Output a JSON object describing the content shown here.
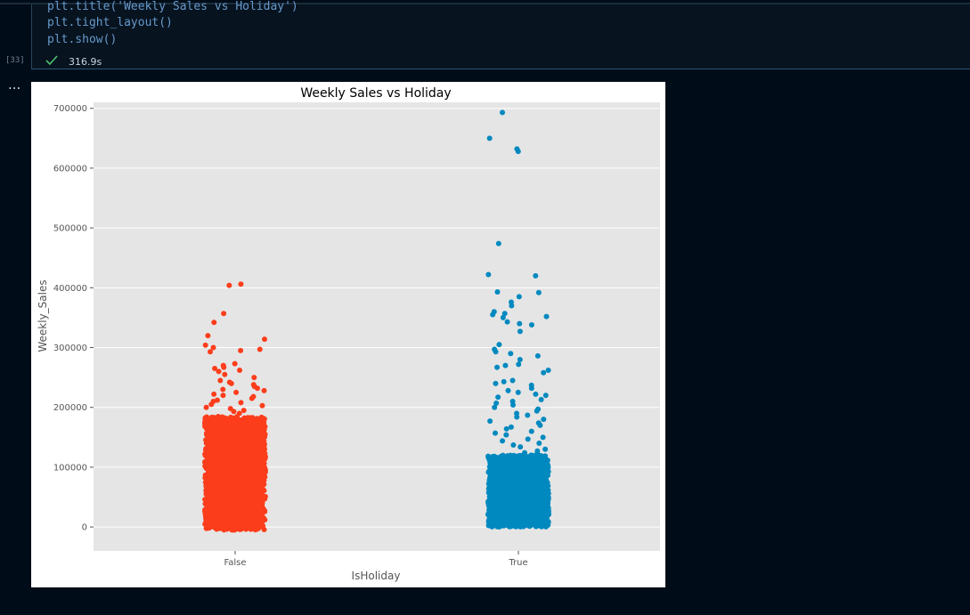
{
  "code": {
    "line1": "plt.title('Weekly Sales vs Holiday')",
    "line2": "plt.tight_layout()",
    "line3": "plt.show()",
    "exec_count": "[33]",
    "duration": "316.9s",
    "output_menu": "..."
  },
  "colors": {
    "false_series": "#fc3d1b",
    "true_series": "#0089bf",
    "plot_bg": "#e5e5e5",
    "grid": "#ffffff"
  },
  "chart_data": {
    "type": "scatter",
    "subtype": "strip plot (jittered)",
    "title": "Weekly Sales vs Holiday",
    "xlabel": "IsHoliday",
    "ylabel": "Weekly_Sales",
    "categories": [
      "False",
      "True"
    ],
    "ylim": [
      -40000,
      710000
    ],
    "yticks": [
      0,
      100000,
      200000,
      300000,
      400000,
      500000,
      600000,
      700000
    ],
    "ytick_labels": [
      "0",
      "100000",
      "200000",
      "300000",
      "400000",
      "500000",
      "600000",
      "700000"
    ],
    "grid": true,
    "series": [
      {
        "category": "False",
        "dense_range": [
          -5000,
          185000
        ],
        "values": [
          406000,
          404000,
          357000,
          342000,
          320000,
          314000,
          304000,
          300000,
          297000,
          295000,
          293000,
          273000,
          270000,
          267000,
          265000,
          262000,
          260000,
          255000,
          250000,
          245000,
          242000,
          240000,
          238000,
          235000,
          232000,
          230000,
          228000,
          225000,
          222000,
          220000,
          218000,
          215000,
          212000,
          210000,
          208000,
          205000,
          203000,
          200000,
          198000,
          195000,
          193000,
          190000
        ]
      },
      {
        "category": "True",
        "dense_range": [
          0,
          120000
        ],
        "values": [
          693000,
          650000,
          632000,
          628000,
          474000,
          422000,
          420000,
          393000,
          392000,
          385000,
          376000,
          370000,
          360000,
          357000,
          355000,
          352000,
          350000,
          343000,
          340000,
          338000,
          327000,
          305000,
          297000,
          293000,
          290000,
          286000,
          280000,
          272000,
          270000,
          267000,
          262000,
          258000,
          245000,
          243000,
          240000,
          237000,
          232000,
          228000,
          225000,
          222000,
          220000,
          217000,
          213000,
          210000,
          207000,
          204000,
          200000,
          197000,
          194000,
          190000,
          187000,
          184000,
          180000,
          177000,
          174000,
          170000,
          167000,
          164000,
          160000,
          157000,
          154000,
          150000,
          147000,
          144000,
          140000,
          137000,
          134000,
          130000,
          127000,
          124000
        ]
      }
    ]
  }
}
